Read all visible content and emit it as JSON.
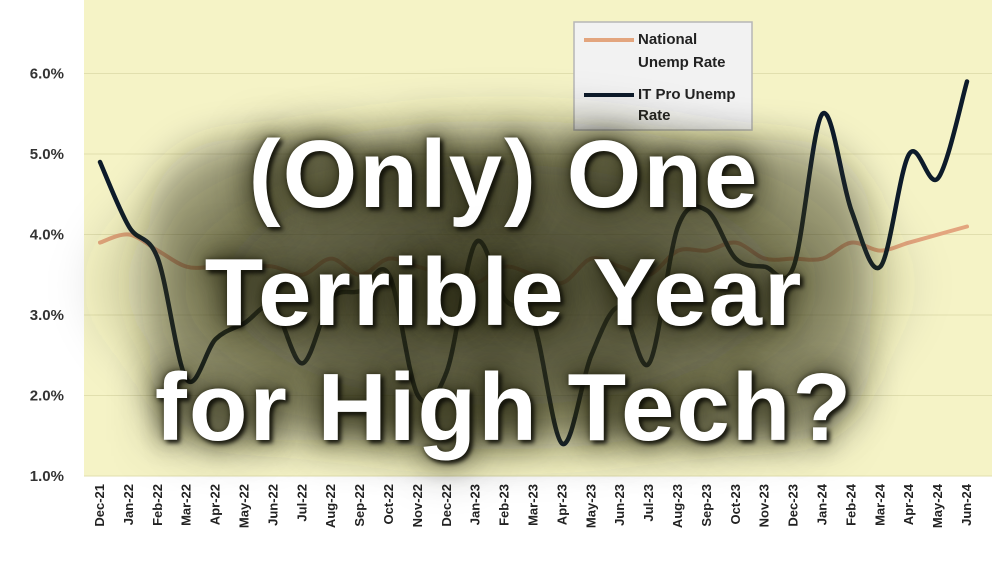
{
  "headline": {
    "line1": "(Only) One",
    "line2": "Terrible Year",
    "line3": "for High Tech?"
  },
  "colors": {
    "plot_background": "#f5f3c6",
    "gridline": "#e1dfae",
    "national_line": "#e3a57e",
    "it_pro_line": "#0d1b2a",
    "axis_text": "#222222"
  },
  "chart_data": {
    "type": "line",
    "categories": [
      "Dec-21",
      "Jan-22",
      "Feb-22",
      "Mar-22",
      "Apr-22",
      "May-22",
      "Jun-22",
      "Jul-22",
      "Aug-22",
      "Sep-22",
      "Oct-22",
      "Nov-22",
      "Dec-22",
      "Jan-23",
      "Feb-23",
      "Mar-23",
      "Apr-23",
      "May-23",
      "Jun-23",
      "Jul-23",
      "Aug-23",
      "Sep-23",
      "Oct-23",
      "Nov-23",
      "Dec-23",
      "Jan-24",
      "Feb-24",
      "Mar-24",
      "Apr-24",
      "May-24",
      "Jun-24"
    ],
    "series": [
      {
        "name": "National Unemp Rate",
        "color": "#e3a57e",
        "values": [
          3.9,
          4.0,
          3.8,
          3.6,
          3.6,
          3.6,
          3.6,
          3.5,
          3.7,
          3.5,
          3.7,
          3.6,
          3.5,
          3.4,
          3.6,
          3.5,
          3.4,
          3.7,
          3.6,
          3.5,
          3.8,
          3.8,
          3.9,
          3.7,
          3.7,
          3.7,
          3.9,
          3.8,
          3.9,
          4.0,
          4.1
        ]
      },
      {
        "name": "IT Pro Unemp Rate",
        "color": "#0d1b2a",
        "values": [
          4.9,
          4.1,
          3.7,
          2.2,
          2.7,
          2.9,
          3.1,
          2.4,
          3.2,
          3.3,
          3.5,
          2.0,
          2.3,
          3.9,
          3.2,
          2.9,
          1.4,
          2.5,
          3.1,
          2.4,
          4.1,
          4.3,
          3.7,
          3.6,
          3.6,
          5.5,
          4.3,
          3.6,
          5.0,
          4.7,
          5.9
        ]
      }
    ],
    "y_tick_labels": [
      "1.0%",
      "2.0%",
      "3.0%",
      "4.0%",
      "5.0%",
      "6.0%"
    ],
    "y_ticks": [
      1.0,
      2.0,
      3.0,
      4.0,
      5.0,
      6.0
    ],
    "ylim": [
      1.0,
      7.0
    ],
    "grid": true,
    "legend_position": "top-right",
    "title": "",
    "xlabel": "",
    "ylabel": ""
  }
}
